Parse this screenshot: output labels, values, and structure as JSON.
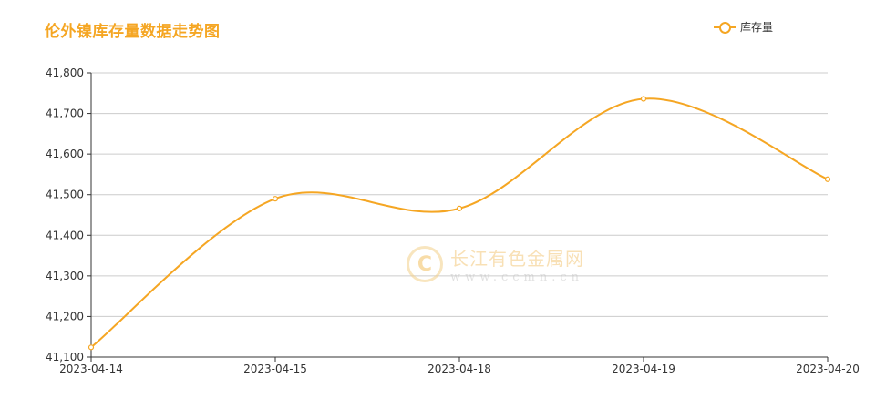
{
  "title": "伦外镍库存量数据走势图",
  "legend": {
    "label": "库存量"
  },
  "watermark": {
    "name": "长江有色金属网",
    "url": "www.ccmn.cn",
    "logo_letter": "C"
  },
  "colors": {
    "series": "#f5a623",
    "grid": "#cccccc",
    "axis": "#333333",
    "tick_text": "#333333"
  },
  "chart_data": {
    "type": "line",
    "title": "伦外镍库存量数据走势图",
    "xlabel": "",
    "ylabel": "",
    "categories": [
      "2023-04-14",
      "2023-04-15",
      "2023-04-18",
      "2023-04-19",
      "2023-04-20"
    ],
    "series": [
      {
        "name": "库存量",
        "values": [
          41124,
          41490,
          41466,
          41736,
          41538
        ],
        "smooth": true
      }
    ],
    "ylim": [
      41100,
      41800
    ],
    "yticks": [
      41100,
      41200,
      41300,
      41400,
      41500,
      41600,
      41700,
      41800
    ],
    "ytick_labels": [
      "41,100",
      "41,200",
      "41,300",
      "41,400",
      "41,500",
      "41,600",
      "41,700",
      "41,800"
    ],
    "grid": true,
    "legend_position": "top-right"
  }
}
